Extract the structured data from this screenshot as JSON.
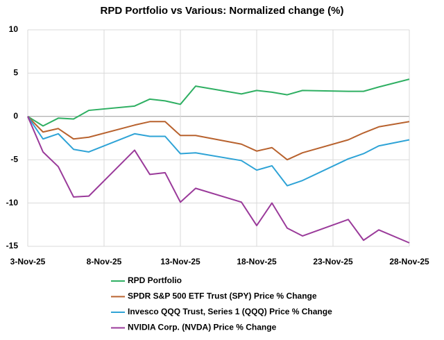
{
  "chart_data": {
    "type": "line",
    "title": "RPD Portfolio vs Various:  Normalized change (%)",
    "x": [
      "2025-11-03",
      "2025-11-04",
      "2025-11-05",
      "2025-11-06",
      "2025-11-07",
      "2025-11-10",
      "2025-11-11",
      "2025-11-12",
      "2025-11-13",
      "2025-11-14",
      "2025-11-17",
      "2025-11-18",
      "2025-11-19",
      "2025-11-20",
      "2025-11-21",
      "2025-11-24",
      "2025-11-25",
      "2025-11-26",
      "2025-11-28"
    ],
    "xlim": [
      "2025-11-03",
      "2025-11-28"
    ],
    "xticks": [
      {
        "value": "2025-11-03",
        "label": "3-Nov-25"
      },
      {
        "value": "2025-11-08",
        "label": "8-Nov-25"
      },
      {
        "value": "2025-11-13",
        "label": "13-Nov-25"
      },
      {
        "value": "2025-11-18",
        "label": "18-Nov-25"
      },
      {
        "value": "2025-11-23",
        "label": "23-Nov-25"
      },
      {
        "value": "2025-11-28",
        "label": "28-Nov-25"
      }
    ],
    "ylim": [
      -15,
      10
    ],
    "yticks": [
      10,
      5,
      0,
      -5,
      -10,
      -15
    ],
    "grid": true,
    "legend": "bottom",
    "series": [
      {
        "name": "RPD Portfolio",
        "color": "#2eaf62",
        "values": [
          0,
          -1.1,
          -0.2,
          -0.3,
          0.7,
          1.2,
          2.0,
          1.8,
          1.4,
          3.5,
          2.6,
          3.0,
          2.8,
          2.5,
          3.0,
          2.9,
          2.9,
          3.4,
          4.3
        ]
      },
      {
        "name": "SPDR S&P 500 ETF Trust (SPY) Price % Change",
        "color": "#b8622e",
        "values": [
          0,
          -1.8,
          -1.4,
          -2.6,
          -2.4,
          -1.0,
          -0.6,
          -0.6,
          -2.2,
          -2.2,
          -3.2,
          -4.0,
          -3.6,
          -5.0,
          -4.2,
          -2.7,
          -1.9,
          -1.2,
          -0.6
        ]
      },
      {
        "name": "Invesco QQQ Trust, Series 1 (QQQ) Price % Change",
        "color": "#2ea3d6",
        "values": [
          0,
          -2.6,
          -2.0,
          -3.8,
          -4.1,
          -2.0,
          -2.3,
          -2.3,
          -4.3,
          -4.2,
          -5.1,
          -6.2,
          -5.7,
          -8.0,
          -7.4,
          -4.9,
          -4.3,
          -3.4,
          -2.7
        ]
      },
      {
        "name": "NVIDIA Corp. (NVDA) Price % Change",
        "color": "#9a3a9a",
        "values": [
          0,
          -4.1,
          -5.8,
          -9.3,
          -9.2,
          -3.9,
          -6.7,
          -6.5,
          -9.9,
          -8.3,
          -9.9,
          -12.6,
          -10.0,
          -12.9,
          -13.8,
          -11.9,
          -14.3,
          -13.1,
          -14.6
        ]
      }
    ]
  }
}
